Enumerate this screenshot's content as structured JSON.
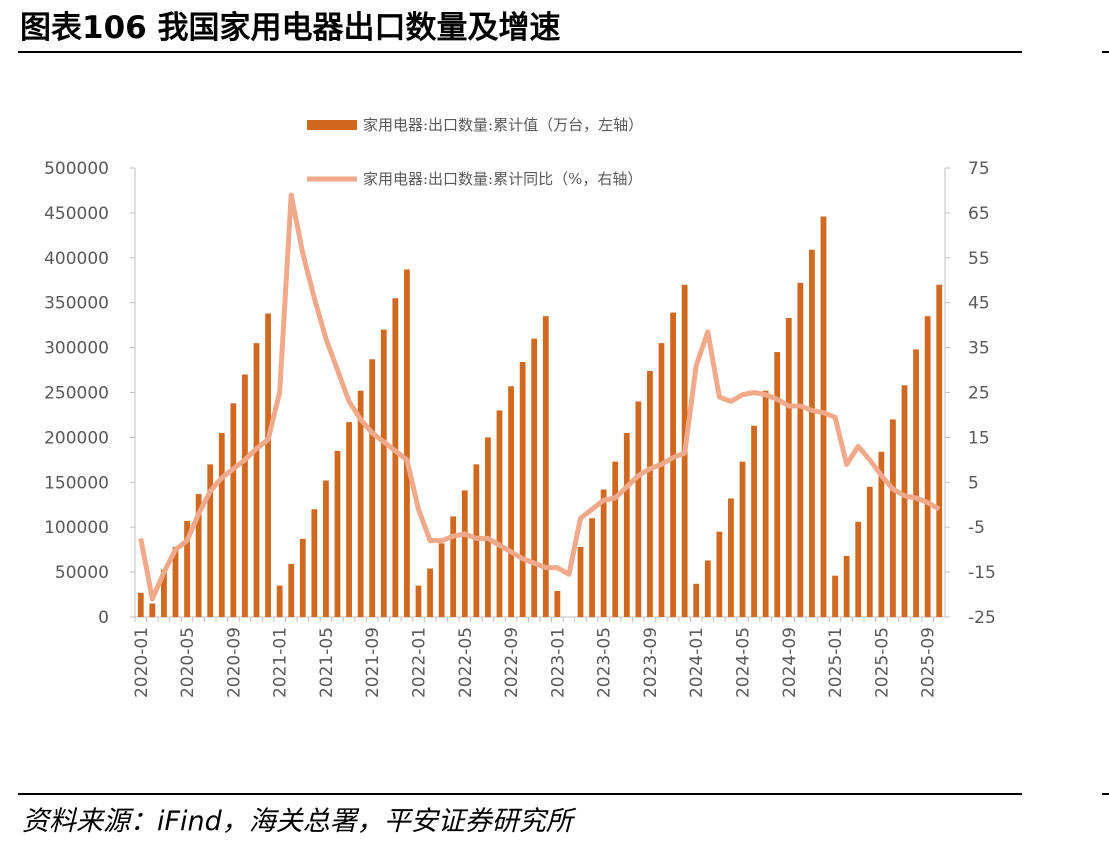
{
  "header": {
    "title": "图表106  我国家用电器出口数量及增速"
  },
  "chart_data": {
    "type": "bar-line",
    "categories": [
      "2020-01",
      null,
      null,
      null,
      "2020-05",
      null,
      null,
      null,
      "2020-09",
      null,
      null,
      null,
      "2021-01",
      null,
      null,
      null,
      "2021-05",
      null,
      null,
      null,
      "2021-09",
      null,
      null,
      null,
      "2022-01",
      null,
      null,
      null,
      "2022-05",
      null,
      null,
      null,
      "2022-09",
      null,
      null,
      null,
      "2023-01",
      null,
      null,
      null,
      "2023-05",
      null,
      null,
      null,
      "2023-09",
      null,
      null,
      null,
      "2024-01",
      null,
      null,
      null,
      "2024-05",
      null,
      null,
      null,
      "2024-09",
      null,
      null,
      null,
      "2025-01",
      null,
      null,
      null,
      "2025-05",
      null,
      null,
      null,
      "2025-09",
      null
    ],
    "series": [
      {
        "name": "家用电器:出口数量:累计值（万台，左轴）",
        "type": "bar",
        "color": "#d0691f",
        "values": [
          27000,
          15000,
          53000,
          78000,
          107000,
          137000,
          170000,
          205000,
          238000,
          270000,
          305000,
          338000,
          35000,
          59000,
          87000,
          120000,
          152000,
          185000,
          217000,
          252000,
          287000,
          320000,
          355000,
          387000,
          35000,
          54000,
          82000,
          112000,
          141000,
          170000,
          200000,
          230000,
          257000,
          284000,
          310000,
          335000,
          29000,
          null,
          78000,
          110000,
          142000,
          173000,
          205000,
          240000,
          274000,
          305000,
          339000,
          370000,
          37000,
          63000,
          95000,
          132000,
          173000,
          213000,
          252000,
          295000,
          333000,
          372000,
          409000,
          446000,
          46000,
          68000,
          106000,
          145000,
          184000,
          220000,
          258000,
          298000,
          335000,
          370000
        ]
      },
      {
        "name": "家用电器:出口数量:累计同比（%，右轴）",
        "type": "line",
        "axis": "y2",
        "color": "#f0a98a",
        "values": [
          -7.5,
          -21,
          -15,
          -10,
          -8,
          -2,
          3,
          6,
          8,
          10,
          12.5,
          14.5,
          25,
          69,
          56,
          46,
          37,
          30,
          23,
          19,
          16,
          14,
          12,
          10,
          -1,
          -8,
          -8,
          -7,
          -6.5,
          -7.5,
          -7.5,
          -9,
          -10.5,
          -12,
          -13,
          -14,
          -14,
          -15.5,
          -3,
          -1,
          1,
          1.5,
          4,
          6.5,
          8,
          9,
          10.5,
          11.5,
          31,
          38.5,
          24,
          23,
          24.5,
          25,
          24.5,
          23.5,
          22,
          22,
          21,
          20.5,
          19.5,
          9,
          13,
          10,
          6.5,
          3.5,
          2,
          1.5,
          0.5,
          -1
        ]
      }
    ],
    "ylim": [
      0,
      500000
    ],
    "yticks": [
      0,
      50000,
      100000,
      150000,
      200000,
      250000,
      300000,
      350000,
      400000,
      450000,
      500000
    ],
    "y2lim": [
      -25,
      75
    ],
    "y2ticks": [
      -25,
      -15,
      -5,
      5,
      15,
      25,
      35,
      45,
      55,
      65,
      75
    ]
  },
  "footer": {
    "source": "资料来源：iFind，海关总署，平安证券研究所"
  }
}
